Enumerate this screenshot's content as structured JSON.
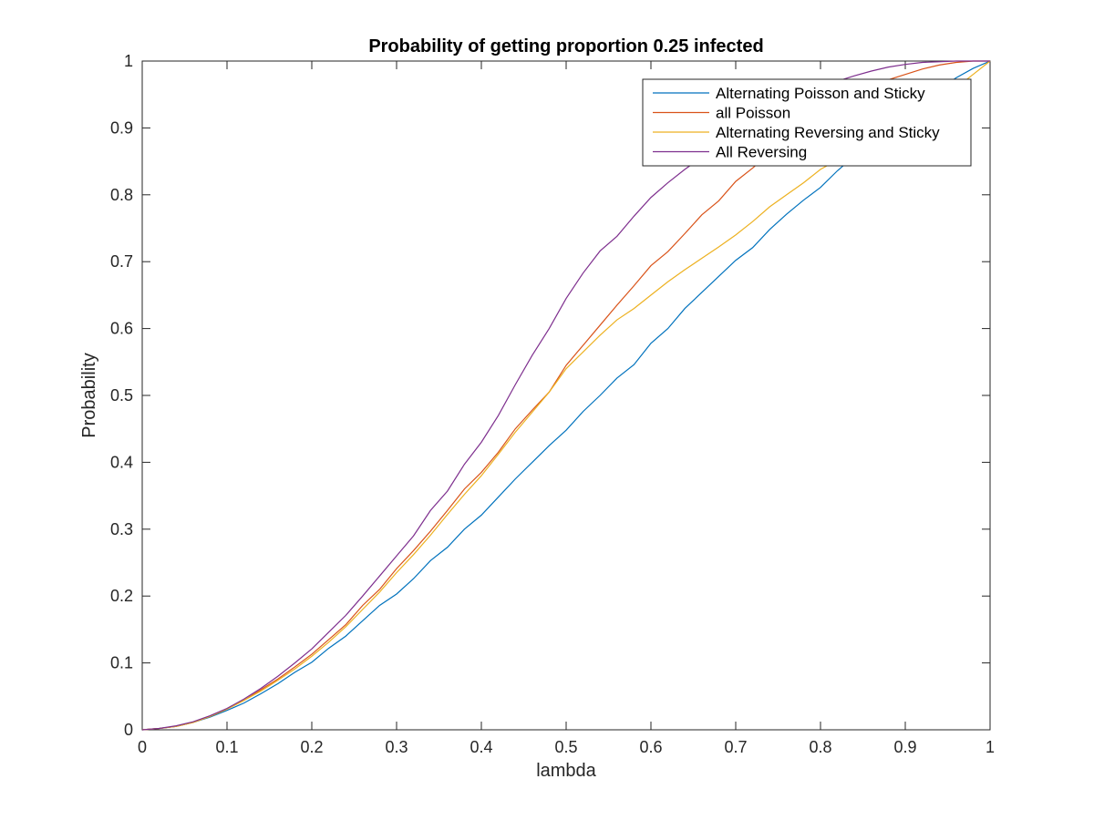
{
  "chart_data": {
    "type": "line",
    "title": "Probability of getting proportion 0.25 infected",
    "xlabel": "lambda",
    "ylabel": "Probability",
    "xlim": [
      0,
      1
    ],
    "ylim": [
      0,
      1
    ],
    "xticks": [
      "0",
      "0.1",
      "0.2",
      "0.3",
      "0.4",
      "0.5",
      "0.6",
      "0.7",
      "0.8",
      "0.9",
      "1"
    ],
    "yticks": [
      "0",
      "0.1",
      "0.2",
      "0.3",
      "0.4",
      "0.5",
      "0.6",
      "0.7",
      "0.8",
      "0.9",
      "1"
    ],
    "grid": false,
    "legend_position": "top-right",
    "x": [
      0,
      0.02,
      0.04,
      0.06,
      0.08,
      0.1,
      0.12,
      0.14,
      0.16,
      0.18,
      0.2,
      0.22,
      0.24,
      0.26,
      0.28,
      0.3,
      0.32,
      0.34,
      0.36,
      0.38,
      0.4,
      0.42,
      0.44,
      0.46,
      0.48,
      0.5,
      0.52,
      0.54,
      0.56,
      0.58,
      0.6,
      0.62,
      0.64,
      0.66,
      0.68,
      0.7,
      0.72,
      0.74,
      0.76,
      0.78,
      0.8,
      0.82,
      0.84,
      0.86,
      0.88,
      0.9,
      0.92,
      0.94,
      0.96,
      0.98,
      1
    ],
    "series": [
      {
        "name": "Alternating Poisson and Sticky",
        "color": "#0072BD",
        "values": [
          0,
          0.002,
          0.005,
          0.011,
          0.019,
          0.029,
          0.04,
          0.054,
          0.069,
          0.086,
          0.101,
          0.122,
          0.14,
          0.163,
          0.186,
          0.203,
          0.226,
          0.253,
          0.273,
          0.3,
          0.321,
          0.348,
          0.375,
          0.4,
          0.425,
          0.448,
          0.476,
          0.5,
          0.526,
          0.546,
          0.578,
          0.6,
          0.63,
          0.654,
          0.678,
          0.702,
          0.721,
          0.748,
          0.771,
          0.792,
          0.811,
          0.836,
          0.858,
          0.88,
          0.901,
          0.922,
          0.94,
          0.958,
          0.975,
          0.989,
          1.0
        ]
      },
      {
        "name": "all Poisson",
        "color": "#D95319",
        "values": [
          0,
          0.002,
          0.005,
          0.011,
          0.02,
          0.031,
          0.044,
          0.06,
          0.076,
          0.094,
          0.113,
          0.135,
          0.157,
          0.186,
          0.21,
          0.241,
          0.268,
          0.297,
          0.328,
          0.36,
          0.385,
          0.415,
          0.45,
          0.478,
          0.505,
          0.545,
          0.575,
          0.605,
          0.635,
          0.664,
          0.694,
          0.715,
          0.742,
          0.77,
          0.791,
          0.82,
          0.84,
          0.862,
          0.88,
          0.901,
          0.918,
          0.935,
          0.95,
          0.962,
          0.972,
          0.98,
          0.988,
          0.994,
          0.998,
          1.0,
          1.0
        ]
      },
      {
        "name": "Alternating Reversing and Sticky",
        "color": "#EDB120",
        "values": [
          0,
          0.002,
          0.005,
          0.011,
          0.02,
          0.031,
          0.044,
          0.058,
          0.074,
          0.091,
          0.11,
          0.131,
          0.154,
          0.18,
          0.206,
          0.235,
          0.262,
          0.291,
          0.322,
          0.352,
          0.38,
          0.412,
          0.445,
          0.475,
          0.505,
          0.54,
          0.565,
          0.59,
          0.613,
          0.63,
          0.65,
          0.67,
          0.688,
          0.705,
          0.722,
          0.74,
          0.76,
          0.782,
          0.8,
          0.818,
          0.838,
          0.852,
          0.866,
          0.88,
          0.895,
          0.91,
          0.925,
          0.942,
          0.96,
          0.98,
          1.0
        ]
      },
      {
        "name": "All Reversing",
        "color": "#7E2F8E",
        "values": [
          0,
          0.002,
          0.006,
          0.012,
          0.021,
          0.032,
          0.046,
          0.062,
          0.08,
          0.1,
          0.121,
          0.146,
          0.171,
          0.2,
          0.23,
          0.26,
          0.29,
          0.328,
          0.357,
          0.397,
          0.43,
          0.47,
          0.516,
          0.56,
          0.6,
          0.645,
          0.683,
          0.716,
          0.738,
          0.768,
          0.796,
          0.818,
          0.838,
          0.856,
          0.875,
          0.892,
          0.908,
          0.923,
          0.937,
          0.95,
          0.96,
          0.97,
          0.978,
          0.985,
          0.991,
          0.995,
          0.998,
          0.999,
          1.0,
          1.0,
          1.0
        ]
      }
    ]
  }
}
